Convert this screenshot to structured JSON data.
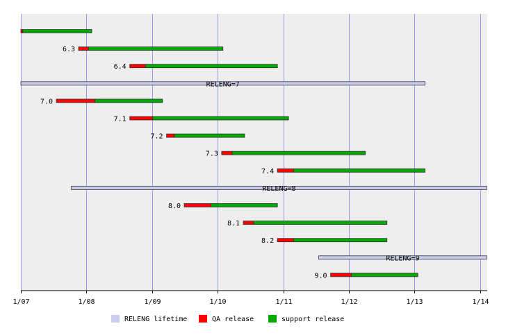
{
  "chart_data": {
    "type": "gantt",
    "title": "",
    "xlabel": "",
    "ylabel": "",
    "x_ticks": [
      "1/07",
      "1/08",
      "1/09",
      "1/10",
      "1/11",
      "1/12",
      "1/13",
      "1/14"
    ],
    "x_range": [
      2007.0,
      2014.1
    ],
    "grid": true,
    "legend_position": "bottom",
    "legend": [
      {
        "key": "lifetime",
        "label": "RELENG lifetime",
        "color": "#ccccee"
      },
      {
        "key": "qa",
        "label": "QA release",
        "color": "#ff0000"
      },
      {
        "key": "support",
        "label": "support release",
        "color": "#00aa00"
      }
    ],
    "rows": [
      {
        "kind": "release",
        "label": "",
        "qa_start": 2007.0,
        "support_start": 2007.03,
        "end": 2008.08
      },
      {
        "kind": "release",
        "label": "6.3",
        "qa_start": 2007.88,
        "support_start": 2008.03,
        "end": 2010.08
      },
      {
        "kind": "release",
        "label": "6.4",
        "qa_start": 2008.66,
        "support_start": 2008.9,
        "end": 2010.91
      },
      {
        "kind": "branch",
        "label": "RELENG=7",
        "start": 2007.0,
        "end": 2013.16
      },
      {
        "kind": "release",
        "label": "7.0",
        "qa_start": 2007.54,
        "support_start": 2008.13,
        "end": 2009.16
      },
      {
        "kind": "release",
        "label": "7.1",
        "qa_start": 2008.66,
        "support_start": 2009.01,
        "end": 2011.08
      },
      {
        "kind": "release",
        "label": "7.2",
        "qa_start": 2009.22,
        "support_start": 2009.34,
        "end": 2010.41
      },
      {
        "kind": "release",
        "label": "7.3",
        "qa_start": 2010.06,
        "support_start": 2010.22,
        "end": 2012.25
      },
      {
        "kind": "release",
        "label": "7.4",
        "qa_start": 2010.91,
        "support_start": 2011.16,
        "end": 2013.16
      },
      {
        "kind": "branch",
        "label": "RELENG=8",
        "start": 2007.77,
        "end": 2014.1
      },
      {
        "kind": "release",
        "label": "8.0",
        "qa_start": 2009.49,
        "support_start": 2009.9,
        "end": 2010.91
      },
      {
        "kind": "release",
        "label": "8.1",
        "qa_start": 2010.39,
        "support_start": 2010.55,
        "end": 2012.58
      },
      {
        "kind": "release",
        "label": "8.2",
        "qa_start": 2010.91,
        "support_start": 2011.16,
        "end": 2012.58
      },
      {
        "kind": "branch",
        "label": "RELENG=9",
        "start": 2011.54,
        "end": 2014.1
      },
      {
        "kind": "release",
        "label": "9.0",
        "qa_start": 2011.72,
        "support_start": 2012.04,
        "end": 2013.05
      }
    ]
  }
}
